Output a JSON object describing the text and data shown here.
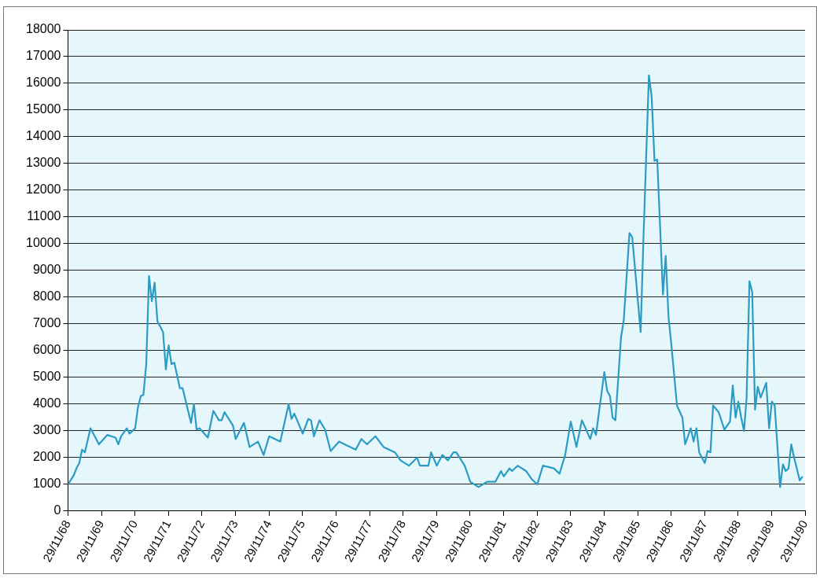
{
  "chart_data": {
    "type": "line",
    "xlim": [
      "1968-11-29",
      "1990-11-29"
    ],
    "ylim": [
      0,
      18000
    ],
    "yticks": [
      0,
      1000,
      2000,
      3000,
      4000,
      5000,
      6000,
      7000,
      8000,
      9000,
      10000,
      11000,
      12000,
      13000,
      14000,
      15000,
      16000,
      17000,
      18000
    ],
    "xticks": [
      {
        "value": "1968-11-29",
        "label": "29/11/68"
      },
      {
        "value": "1969-11-29",
        "label": "29/11/69"
      },
      {
        "value": "1970-11-29",
        "label": "29/11/70"
      },
      {
        "value": "1971-11-29",
        "label": "29/11/71"
      },
      {
        "value": "1972-11-29",
        "label": "29/11/72"
      },
      {
        "value": "1973-11-29",
        "label": "29/11/73"
      },
      {
        "value": "1974-11-29",
        "label": "29/11/74"
      },
      {
        "value": "1975-11-29",
        "label": "29/11/75"
      },
      {
        "value": "1976-11-29",
        "label": "29/11/76"
      },
      {
        "value": "1977-11-29",
        "label": "29/11/77"
      },
      {
        "value": "1978-11-29",
        "label": "29/11/78"
      },
      {
        "value": "1979-11-29",
        "label": "29/11/79"
      },
      {
        "value": "1980-11-29",
        "label": "29/11/80"
      },
      {
        "value": "1981-11-29",
        "label": "29/11/81"
      },
      {
        "value": "1982-11-29",
        "label": "29/11/82"
      },
      {
        "value": "1983-11-29",
        "label": "29/11/83"
      },
      {
        "value": "1984-11-29",
        "label": "29/11/84"
      },
      {
        "value": "1985-11-29",
        "label": "29/11/85"
      },
      {
        "value": "1986-11-29",
        "label": "29/11/86"
      },
      {
        "value": "1987-11-29",
        "label": "29/11/87"
      },
      {
        "value": "1988-11-29",
        "label": "29/11/88"
      },
      {
        "value": "1989-11-29",
        "label": "29/11/89"
      },
      {
        "value": "1990-11-29",
        "label": "29/11/90"
      }
    ],
    "grid": "y",
    "legend": false,
    "marker": "none",
    "line_style": "solid",
    "x": [
      "1968-11-29",
      "1969-02",
      "1969-03",
      "1969-04",
      "1969-05",
      "1969-06",
      "1969-08",
      "1969-11",
      "1970-02",
      "1970-05",
      "1970-06",
      "1970-07",
      "1970-09",
      "1970-10",
      "1970-12",
      "1971-01",
      "1971-02",
      "1971-03",
      "1971-04",
      "1971-05",
      "1971-06",
      "1971-07",
      "1971-08",
      "1971-10",
      "1971-11",
      "1971-12",
      "1972-01",
      "1972-02",
      "1972-04",
      "1972-05",
      "1972-08",
      "1972-09",
      "1972-10",
      "1972-11",
      "1973-02",
      "1973-04",
      "1973-06",
      "1973-07",
      "1973-08",
      "1973-11",
      "1973-12",
      "1974-03",
      "1974-05",
      "1974-08",
      "1974-10",
      "1974-12",
      "1975-04",
      "1975-07",
      "1975-08",
      "1975-09",
      "1975-12",
      "1976-02",
      "1976-03",
      "1976-04",
      "1976-06",
      "1976-08",
      "1976-10",
      "1977-01",
      "1977-03",
      "1977-07",
      "1977-09",
      "1977-11",
      "1978-02",
      "1978-05",
      "1978-09",
      "1978-11",
      "1979-02",
      "1979-05",
      "1979-06",
      "1979-09",
      "1979-10",
      "1979-12",
      "1980-02",
      "1980-04",
      "1980-06",
      "1980-07",
      "1980-10",
      "1980-12",
      "1981-03",
      "1981-06",
      "1981-09",
      "1981-11",
      "1981-12",
      "1982-02",
      "1982-03",
      "1982-05",
      "1982-08",
      "1982-10",
      "1982-12",
      "1983-02",
      "1983-06",
      "1983-08",
      "1983-10",
      "1983-12",
      "1984-02",
      "1984-04",
      "1984-07",
      "1984-08",
      "1984-09",
      "1984-12",
      "1985-01",
      "1985-02",
      "1985-03",
      "1985-04",
      "1985-06",
      "1985-07",
      "1985-09",
      "1985-10",
      "1986-01",
      "1986-02",
      "1986-04",
      "1986-05",
      "1986-06",
      "1986-07",
      "1986-09",
      "1986-10",
      "1986-11",
      "1986-12",
      "1987-02",
      "1987-04",
      "1987-05",
      "1987-07",
      "1987-08",
      "1987-09",
      "1987-10",
      "1987-12",
      "1988-01",
      "1988-02",
      "1988-03",
      "1988-05",
      "1988-07",
      "1988-09",
      "1988-10",
      "1988-11",
      "1988-12",
      "1989-01",
      "1989-02",
      "1989-03",
      "1989-04",
      "1989-05",
      "1989-06",
      "1989-07",
      "1989-08",
      "1989-10",
      "1989-11",
      "1989-12",
      "1990-01",
      "1990-03",
      "1990-04",
      "1990-05",
      "1990-06",
      "1990-07",
      "1990-08",
      "1990-10",
      "1990-11"
    ],
    "series": [
      {
        "color": "#2a9cc4",
        "values": [
          1000,
          1350,
          1600,
          1800,
          2300,
          2200,
          3100,
          2500,
          2850,
          2750,
          2500,
          2800,
          3100,
          2900,
          3100,
          3900,
          4300,
          4350,
          5500,
          8800,
          7850,
          8550,
          7100,
          6700,
          5300,
          6200,
          5500,
          5550,
          4600,
          4600,
          3300,
          4000,
          3050,
          3100,
          2750,
          3750,
          3400,
          3400,
          3700,
          3200,
          2700,
          3300,
          2400,
          2600,
          2100,
          2800,
          2600,
          4000,
          3450,
          3650,
          2900,
          3450,
          3400,
          2800,
          3400,
          3050,
          2250,
          2600,
          2500,
          2300,
          2700,
          2500,
          2800,
          2400,
          2200,
          1900,
          1700,
          2000,
          1700,
          1700,
          2200,
          1700,
          2100,
          1900,
          2200,
          2200,
          1700,
          1100,
          900,
          1100,
          1100,
          1500,
          1300,
          1600,
          1500,
          1700,
          1500,
          1200,
          1000,
          1700,
          1600,
          1400,
          2100,
          3350,
          2400,
          3400,
          2700,
          3100,
          2850,
          5200,
          4500,
          4300,
          3500,
          3400,
          6500,
          7150,
          10400,
          10250,
          6700,
          10250,
          16300,
          15500,
          13100,
          13150,
          8100,
          9550,
          7250,
          6250,
          3950,
          3500,
          2500,
          3100,
          2600,
          3100,
          2200,
          1800,
          2250,
          2200,
          3950,
          3700,
          3050,
          3350,
          4700,
          3500,
          4100,
          3500,
          3000,
          4250,
          8600,
          8200,
          3800,
          4650,
          4250,
          4800,
          3100,
          4100,
          3950,
          900,
          1750,
          1500,
          1600,
          2500,
          2000,
          1150,
          1300
        ]
      }
    ]
  }
}
